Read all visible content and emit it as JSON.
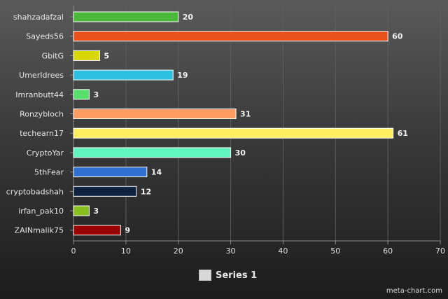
{
  "chart_data": {
    "type": "bar",
    "orientation": "horizontal",
    "categories": [
      "shahzadafzal",
      "Sayeds56",
      "GbitG",
      "UmerIdrees",
      "Imranbutt44",
      "Ronzybloch",
      "techearn17",
      "CryptoYar",
      "5thFear",
      "cryptobadshah",
      "irfan_pak10",
      "ZAINmalik75"
    ],
    "series": [
      {
        "name": "Series 1",
        "values": [
          20,
          60,
          5,
          19,
          3,
          31,
          61,
          30,
          14,
          12,
          3,
          9
        ],
        "colors": [
          "#4cb83a",
          "#e8501c",
          "#d8d800",
          "#2ec0e0",
          "#58e06c",
          "#ff9c64",
          "#ffee60",
          "#62f5c0",
          "#3070d0",
          "#0e2440",
          "#88c020",
          "#990000"
        ]
      }
    ],
    "xlim": [
      0,
      70
    ],
    "xticks": [
      0,
      10,
      20,
      30,
      40,
      50,
      60,
      70
    ],
    "grid": true,
    "legend_position": "bottom-center",
    "title": "",
    "xlabel": "",
    "ylabel": ""
  },
  "legend": {
    "label": "Series 1",
    "color": "#d9d9d9"
  },
  "credit": "meta-chart.com"
}
